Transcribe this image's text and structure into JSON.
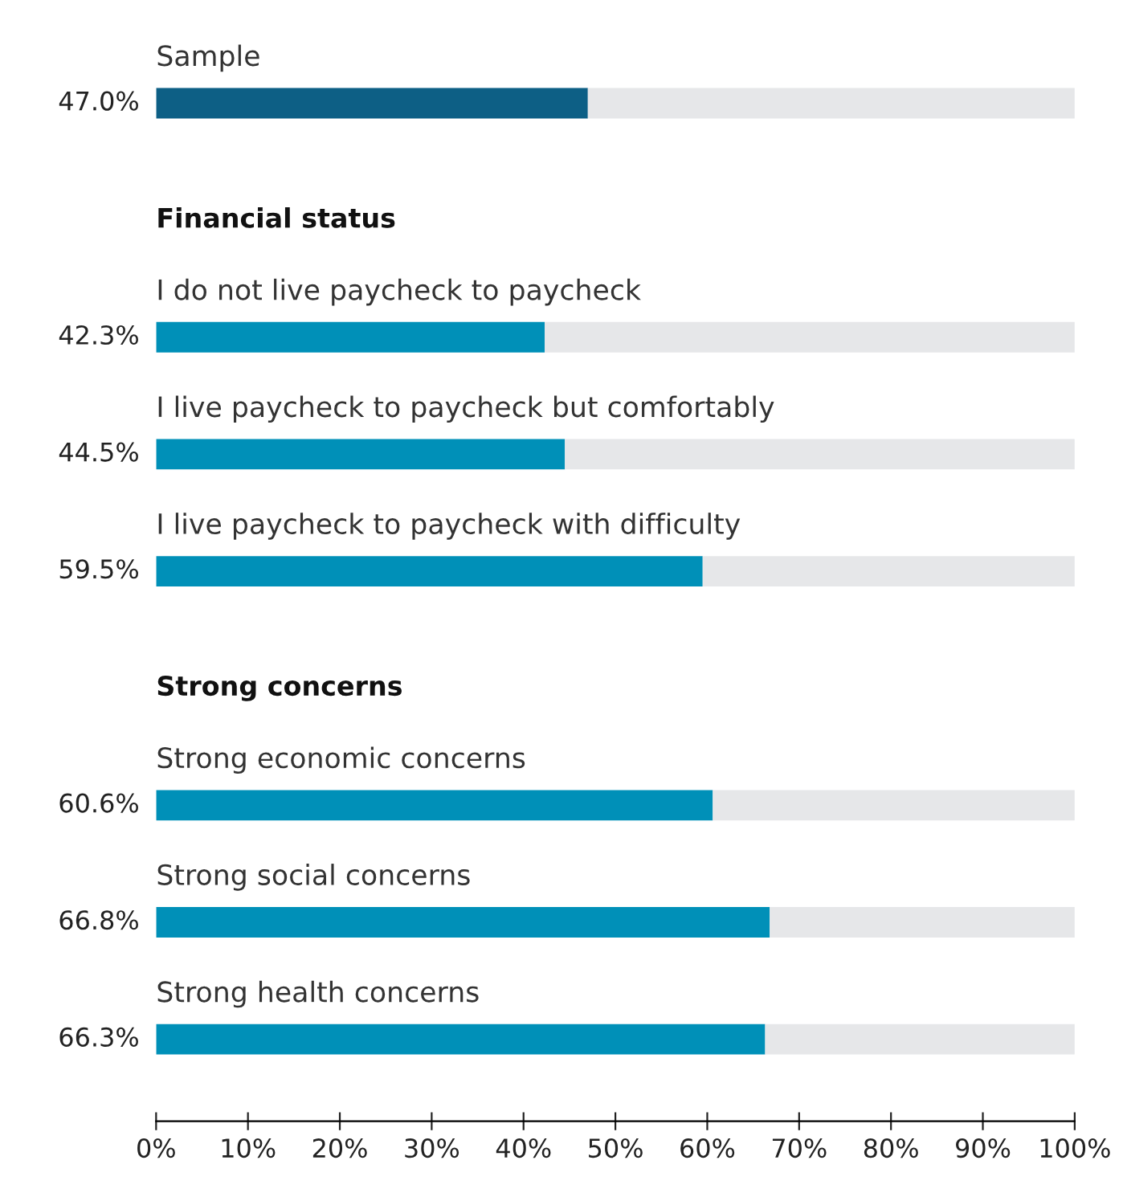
{
  "chart_data": {
    "type": "bar",
    "orientation": "horizontal",
    "categories": [
      "Sample",
      "Financial status",
      "I do not live paycheck to paycheck",
      "I live paycheck to paycheck but comfortably",
      "I live paycheck to paycheck with difficulty",
      "Strong concerns",
      "Strong economic concerns",
      "Strong social concerns",
      "Strong health concerns"
    ],
    "series": [
      {
        "colors": [
          "#0d5f85",
          null,
          "#0090b8",
          "#0090b8",
          "#0090b8",
          null,
          "#0090b8",
          "#0090b8",
          "#0090b8"
        ],
        "values": [
          47.0,
          null,
          42.3,
          44.5,
          59.5,
          null,
          60.6,
          66.8,
          66.3
        ],
        "value_labels": [
          "47.0%",
          null,
          "42.3%",
          "44.5%",
          "59.5%",
          null,
          "60.6%",
          "66.8%",
          "66.3%"
        ]
      },
      {
        "color": "#e6e7e9",
        "values": [
          53.0,
          null,
          57.7,
          55.5,
          40.5,
          null,
          39.4,
          33.2,
          33.7
        ]
      }
    ],
    "stacked": true,
    "xlim": [
      0,
      100
    ],
    "xticks": [
      {
        "value": 0,
        "label": "0%"
      },
      {
        "value": 10,
        "label": "10%"
      },
      {
        "value": 20,
        "label": "20%"
      },
      {
        "value": 30,
        "label": "30%"
      },
      {
        "value": 40,
        "label": "40%"
      },
      {
        "value": 50,
        "label": "50%"
      },
      {
        "value": 60,
        "label": "60%"
      },
      {
        "value": 70,
        "label": "70%"
      },
      {
        "value": 80,
        "label": "80%"
      },
      {
        "value": 90,
        "label": "90%"
      },
      {
        "value": 100,
        "label": "100%"
      }
    ],
    "grid": false,
    "legend": false
  }
}
